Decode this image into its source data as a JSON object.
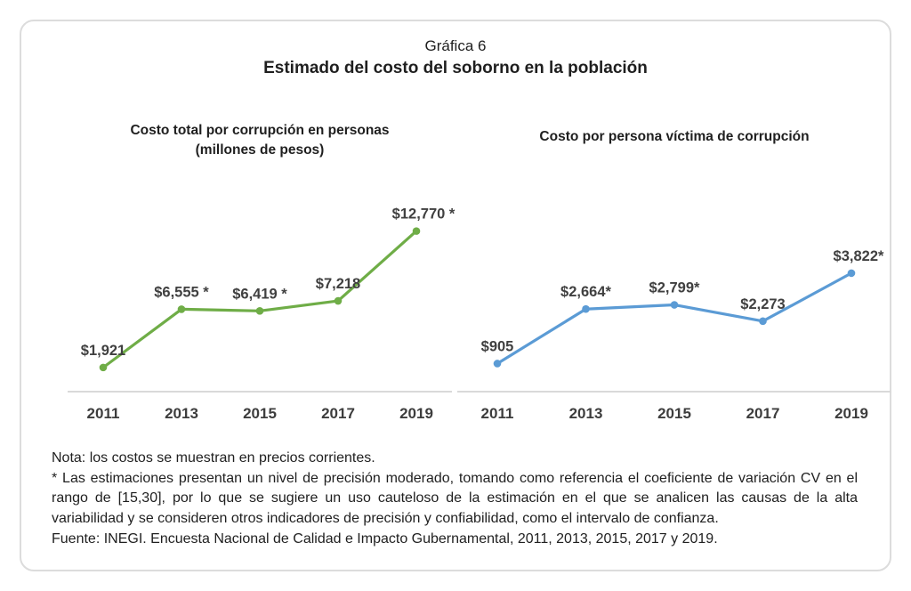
{
  "header": {
    "title_line1": "Gráfica 6",
    "title_line2": "Estimado del costo del soborno en la población"
  },
  "chart_data": [
    {
      "type": "line",
      "title": "Costo total por corrupción en personas",
      "subtitle": "(millones de pesos)",
      "categories": [
        "2011",
        "2013",
        "2015",
        "2017",
        "2019"
      ],
      "values": [
        1921,
        6555,
        6419,
        7218,
        12770
      ],
      "point_labels": [
        "$1,921",
        "$6,555 *",
        "$6,419 *",
        "$7,218",
        "$12,770 *"
      ],
      "xlabel": "",
      "ylabel": "",
      "ylim": [
        0,
        14300
      ],
      "grid": false,
      "legend": "none",
      "line_color": "#6fad47",
      "marker": "circle"
    },
    {
      "type": "line",
      "title": "Costo por persona víctima de corrupción",
      "subtitle": "",
      "categories": [
        "2011",
        "2013",
        "2015",
        "2017",
        "2019"
      ],
      "values": [
        905,
        2664,
        2799,
        2273,
        3822
      ],
      "point_labels": [
        "$905",
        "$2,664*",
        "$2,799*",
        "$2,273",
        "$3,822*"
      ],
      "xlabel": "",
      "ylabel": "",
      "ylim": [
        0,
        5800
      ],
      "grid": false,
      "legend": "none",
      "line_color": "#5b9bd5",
      "marker": "circle"
    }
  ],
  "style": {
    "axis_color": "#d9d9d9",
    "label_color": "#404040",
    "tick_color": "#3d3d3d"
  },
  "footer": {
    "nota": "Nota: los costos se muestran en precios corrientes.",
    "asterisco": "* Las estimaciones presentan un nivel de precisión moderado, tomando como referencia el coeficiente de variación CV en el rango de [15,30], por lo que se sugiere un uso cauteloso de la estimación en el que se analicen las causas de la alta variabilidad y se consideren otros indicadores de precisión y confiabilidad, como el intervalo de confianza.",
    "fuente": "Fuente: INEGI. Encuesta Nacional de Calidad e Impacto Gubernamental, 2011, 2013, 2015, 2017 y 2019."
  }
}
